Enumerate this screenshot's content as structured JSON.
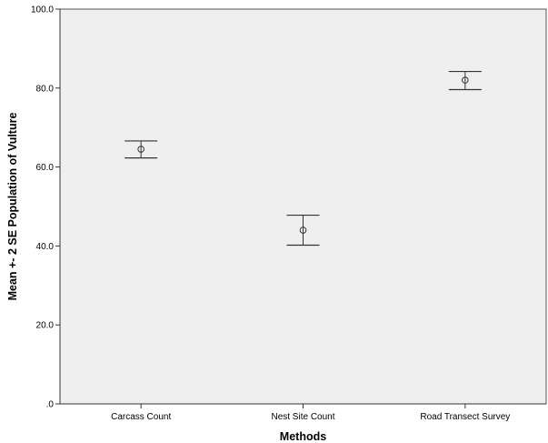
{
  "chart_data": {
    "type": "errorbar",
    "title": "",
    "xlabel": "Methods",
    "ylabel": "Mean +- 2 SE Population of Vulture",
    "ylim": [
      0,
      100
    ],
    "yticks": [
      ".0",
      "20.0",
      "40.0",
      "60.0",
      "80.0",
      "100.0"
    ],
    "ytick_values": [
      0,
      20,
      40,
      60,
      80,
      100
    ],
    "grid": false,
    "legend": "none",
    "categories": [
      "Carcass Count",
      "Nest Site Count",
      "Road Transect Survey"
    ],
    "series": [
      {
        "means": [
          64.5,
          44.0,
          82.0
        ],
        "lower": [
          62.3,
          40.2,
          79.6
        ],
        "upper": [
          66.6,
          47.8,
          84.2
        ]
      }
    ],
    "colors": {
      "plot_background": "#efefef",
      "marks": "#333333",
      "axis": "#333333"
    }
  }
}
